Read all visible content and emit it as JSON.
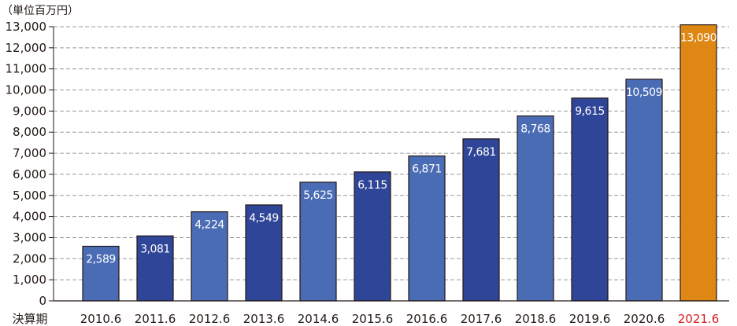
{
  "chart_data": {
    "type": "bar",
    "unit_label": "（単位百万円）",
    "x_axis_title": "決算期",
    "categories": [
      "2010.6",
      "2011.6",
      "2012.6",
      "2013.6",
      "2014.6",
      "2015.6",
      "2016.6",
      "2017.6",
      "2018.6",
      "2019.6",
      "2020.6",
      "2021.6"
    ],
    "values": [
      2589,
      3081,
      4224,
      4549,
      5625,
      6115,
      6871,
      7681,
      8768,
      9615,
      10509,
      13090
    ],
    "value_labels": [
      "2,589",
      "3,081",
      "4,224",
      "4,549",
      "5,625",
      "6,115",
      "6,871",
      "7,681",
      "8,768",
      "9,615",
      "10,509",
      "13,090"
    ],
    "ylim": [
      0,
      13000
    ],
    "yticks": [
      0,
      1000,
      2000,
      3000,
      4000,
      5000,
      6000,
      7000,
      8000,
      9000,
      10000,
      11000,
      12000,
      13000
    ],
    "ytick_labels": [
      "0",
      "1,000",
      "2,000",
      "3,000",
      "4,000",
      "5,000",
      "6,000",
      "7,000",
      "8,000",
      "9,000",
      "10,000",
      "11,000",
      "12,000",
      "13,000"
    ],
    "grid": "horizontal-dashed",
    "highlight_index": 11,
    "colors": {
      "bar_light": "#4a6cb5",
      "bar_dark": "#2f4597",
      "bar_highlight": "#df8714",
      "bar_stroke": "#231815",
      "grid": "#9a9a9a",
      "axis": "#231815",
      "highlight_text": "#d7191e"
    }
  }
}
